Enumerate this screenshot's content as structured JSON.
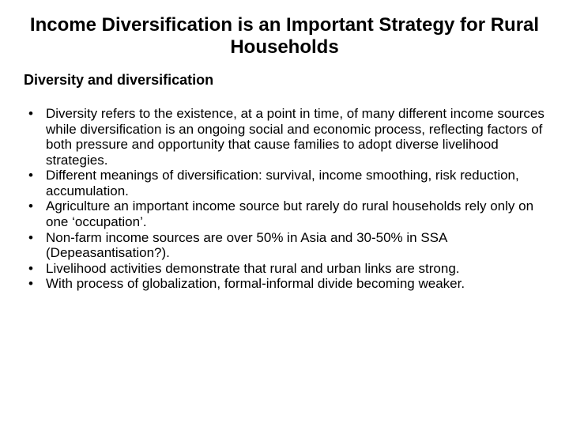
{
  "title": "Income Diversification is an Important Strategy for Rural Households",
  "subtitle": "Diversity and diversification",
  "bullets": [
    {
      "text": "Diversity refers to the existence, at a point in time, of many different income sources while diversification is an ongoing social and economic process, reflecting factors of both pressure and opportunity that cause families to adopt diverse livelihood strategies.",
      "gap": "large"
    },
    {
      "text": "Different meanings of diversification: survival, income smoothing, risk reduction, accumulation.",
      "gap": "large"
    },
    {
      "text": "Agriculture an important income source but rarely do rural households rely only on one ‘occupation’.",
      "gap": "small"
    },
    {
      "text": "Non-farm income sources are over 50% in Asia and 30-50% in SSA (Depeasantisation?).",
      "gap": "small"
    },
    {
      "text": "Livelihood activities demonstrate that rural and urban  links are strong.",
      "gap": "small"
    },
    {
      "text": "With process of globalization, formal-informal divide becoming weaker.",
      "gap": "small"
    }
  ],
  "colors": {
    "background": "#ffffff",
    "text": "#000000"
  },
  "typography": {
    "title_fontsize": 24,
    "subtitle_fontsize": 18,
    "body_fontsize": 17,
    "font_family": "Arial"
  }
}
